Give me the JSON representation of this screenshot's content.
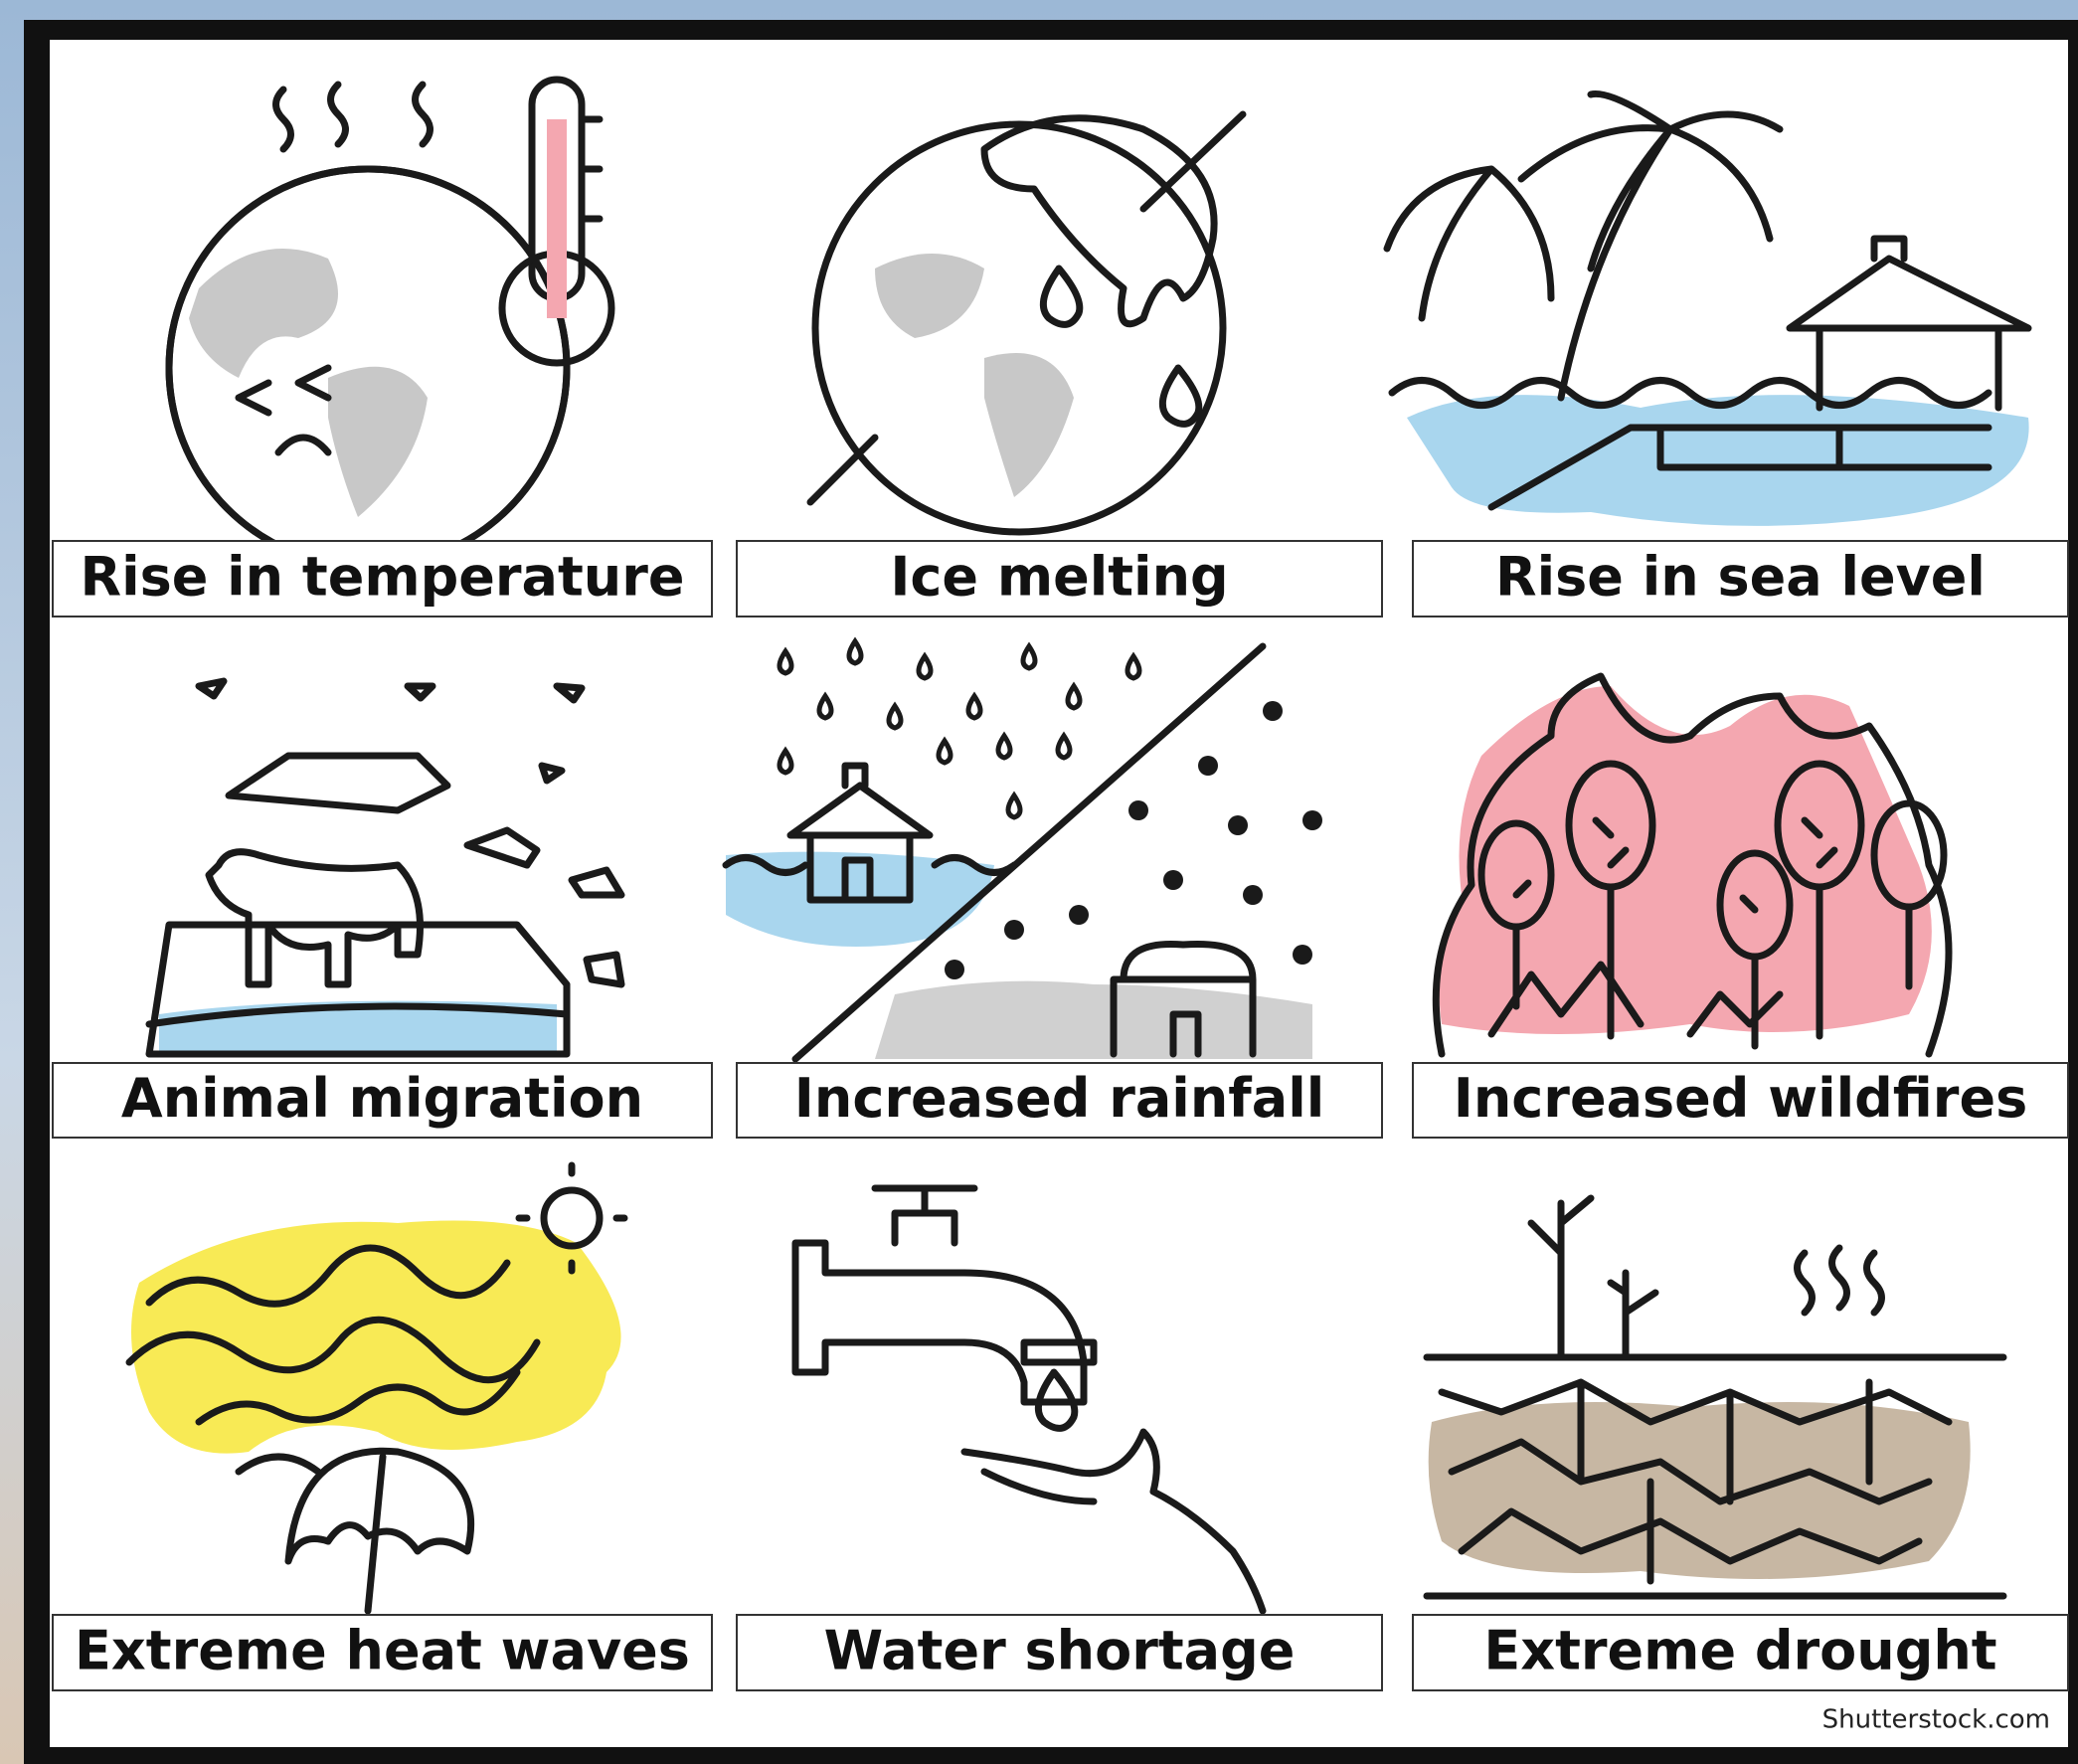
{
  "panels": [
    {
      "label": "Rise in temperature"
    },
    {
      "label": "Ice melting"
    },
    {
      "label": "Rise in sea level"
    },
    {
      "label": "Animal migration"
    },
    {
      "label": "Increased rainfall"
    },
    {
      "label": "Increased wildfires"
    },
    {
      "label": "Extreme heat waves"
    },
    {
      "label": "Water shortage"
    },
    {
      "label": "Extreme drought"
    }
  ],
  "credit": "Shutterstock.com"
}
